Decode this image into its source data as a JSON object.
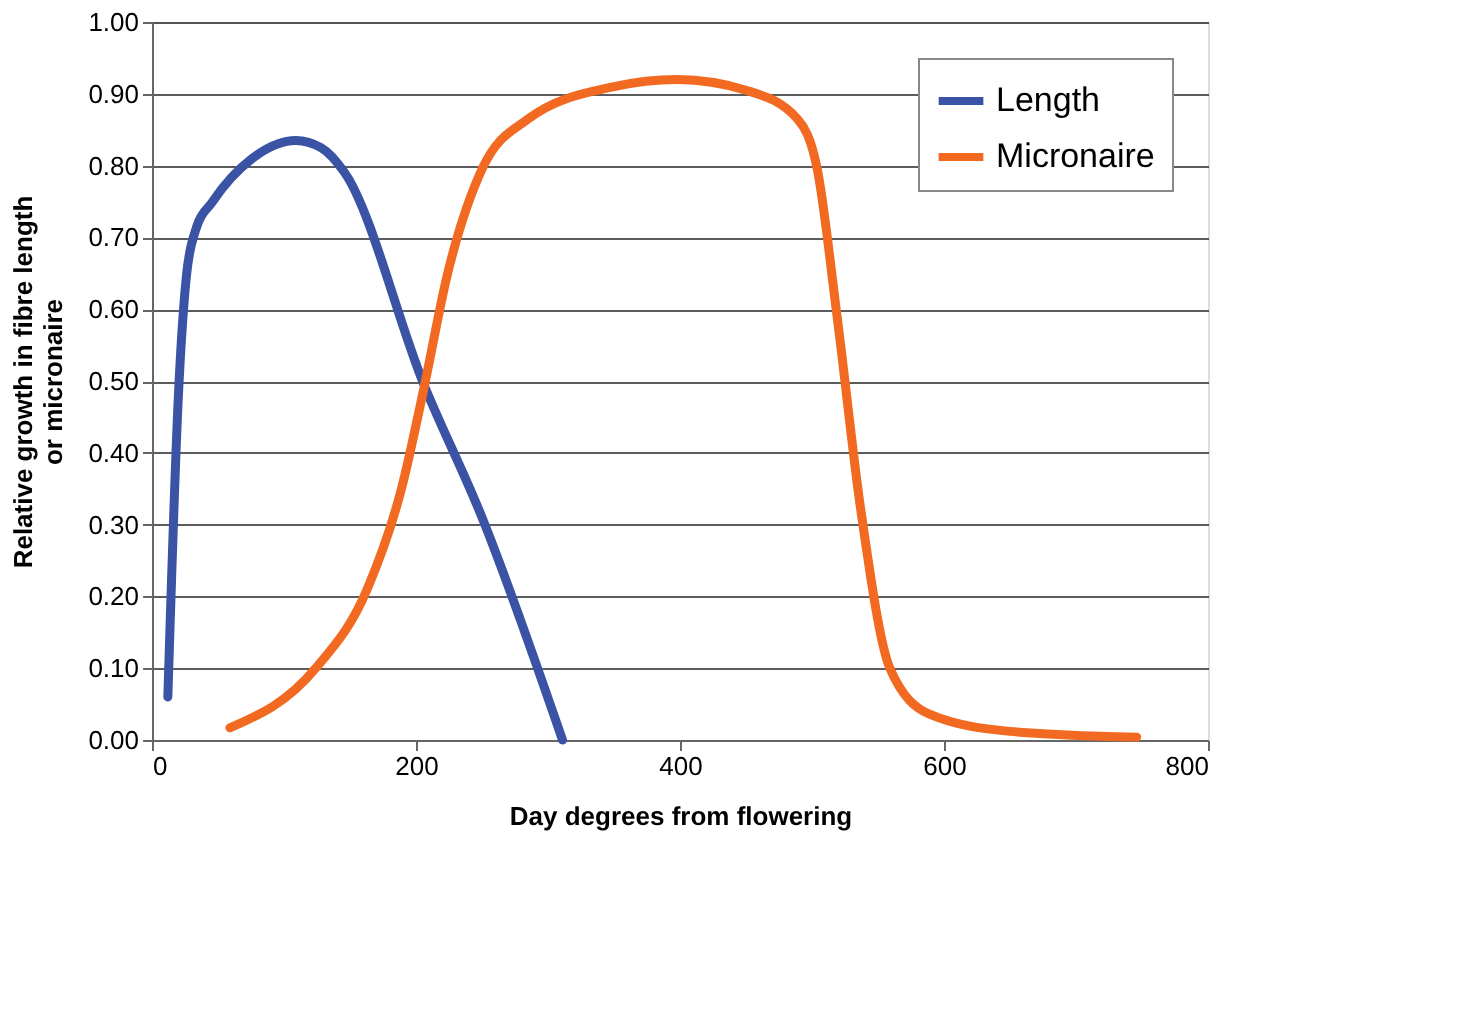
{
  "chart_data": {
    "type": "line",
    "xlabel": "Day degrees from flowering",
    "ylabel": "Relative growth in fibre length\nor micronaire",
    "xlim": [
      0,
      800
    ],
    "xticks": [
      0,
      200,
      400,
      600,
      800
    ],
    "ylim": [
      0,
      1
    ],
    "yticks": [
      {
        "value": 0,
        "label": "0.00"
      },
      {
        "value": 0.1,
        "label": "0.10"
      },
      {
        "value": 0.2,
        "label": "0.20"
      },
      {
        "value": 0.3,
        "label": "0.30"
      },
      {
        "value": 0.4,
        "label": "0.40"
      },
      {
        "value": 0.5,
        "label": "0.50"
      },
      {
        "value": 0.6,
        "label": "0.60"
      },
      {
        "value": 0.7,
        "label": "0.70"
      },
      {
        "value": 0.8,
        "label": "0.80"
      },
      {
        "value": 0.9,
        "label": "0.90"
      },
      {
        "value": 1,
        "label": "1.00"
      }
    ],
    "grid": "y",
    "legend": "top right",
    "line_style": "solid",
    "marker": "none",
    "series": [
      {
        "name": "Length",
        "color": "#3a53a4",
        "x": [
          12,
          20,
          26,
          33,
          46,
          76,
          109,
          128,
          146,
          206,
          250,
          311
        ],
        "values": [
          0.06,
          0.48,
          0.645,
          0.71,
          0.75,
          0.81,
          0.835,
          0.825,
          0.79,
          0.495,
          0.31,
          0
        ]
      },
      {
        "name": "Micronaire",
        "color": "#f26a21",
        "x": [
          59,
          124,
          163,
          189,
          206,
          224,
          250,
          285,
          350,
          398,
          450,
          489,
          504,
          519,
          537,
          559,
          589,
          650,
          746
        ],
        "values": [
          0.017,
          0.1,
          0.21,
          0.35,
          0.49,
          0.65,
          0.795,
          0.865,
          0.91,
          0.92,
          0.905,
          0.865,
          0.795,
          0.59,
          0.32,
          0.1,
          0.036,
          0.012,
          0.004
        ]
      }
    ]
  }
}
